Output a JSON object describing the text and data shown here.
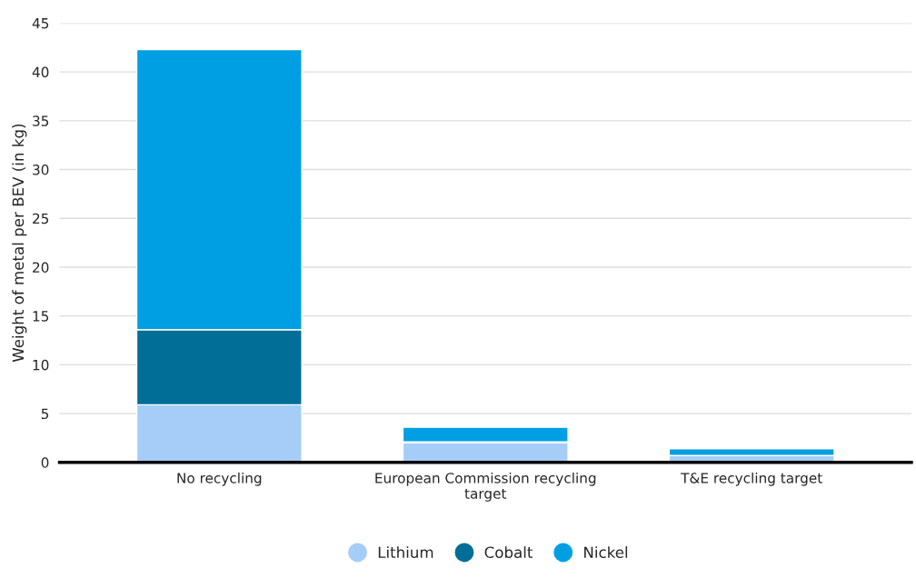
{
  "chart_data": {
    "type": "bar",
    "stacked": true,
    "ylabel": "Weight of metal per BEV (in kg)",
    "categories": [
      "No recycling",
      "European Commission recycling\ntarget",
      "T&E recycling target"
    ],
    "series": [
      {
        "name": "Lithium",
        "color": "#a5cdf7",
        "values": [
          5.9,
          2.0,
          0.7
        ]
      },
      {
        "name": "Cobalt",
        "color": "#006e96",
        "values": [
          7.7,
          0.1,
          0
        ]
      },
      {
        "name": "Nickel",
        "color": "#009fe3",
        "values": [
          28.7,
          1.5,
          0.7
        ]
      }
    ],
    "ylim": [
      0,
      45
    ],
    "yticks": [
      0,
      5,
      10,
      15,
      20,
      25,
      30,
      35,
      40,
      45
    ],
    "grid": "y",
    "legend": "bottom"
  }
}
